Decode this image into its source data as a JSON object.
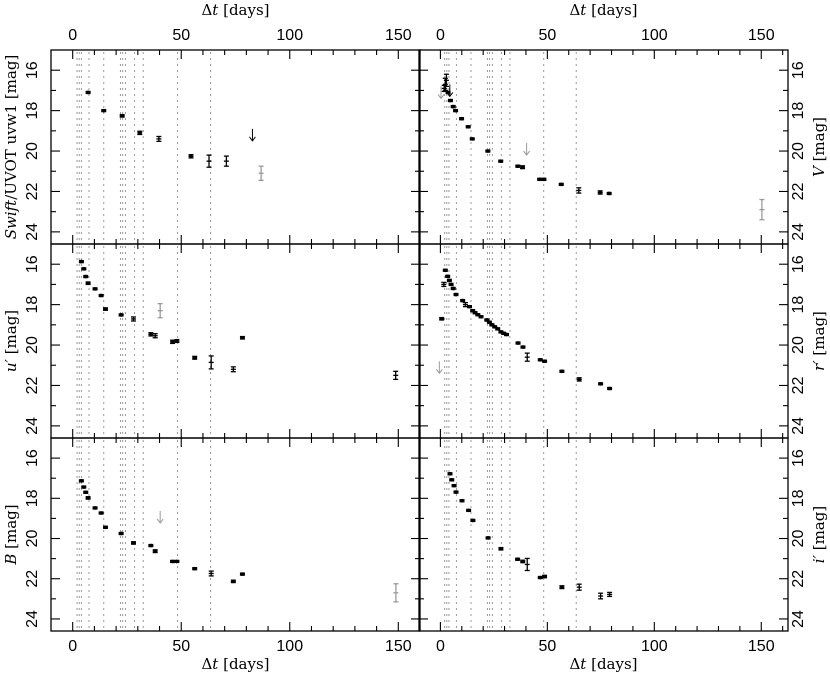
{
  "chart_data": {
    "type": "scatter",
    "x_label_symbol": "Δt",
    "x_label_unit": " [days]",
    "x_ticks": [
      0,
      50,
      100,
      150
    ],
    "y_ticks": [
      16,
      18,
      20,
      22,
      24
    ],
    "y_reversed": true,
    "ylim": [
      15,
      24.6
    ],
    "grid": false,
    "colors": {
      "detection": "#000000",
      "secondary": "#9a9a9a",
      "epoch_lines": "#999999"
    },
    "vertical_lines_days": [
      2,
      3,
      4,
      7.5,
      14.3,
      22,
      23,
      24.3,
      28.5,
      32.5,
      48.3,
      63.5
    ],
    "panels": [
      {
        "id": "uvw1",
        "column": "left",
        "row": 1,
        "xlim": [
          -10,
          160
        ],
        "ylabel_italic": "Swift",
        "ylabel_rest": "/UVOT uvw1 [mag]",
        "points": [
          [
            7.1,
            17.1,
            0.05
          ],
          [
            14.3,
            18.0,
            0.05
          ],
          [
            22.8,
            18.26,
            0.06
          ],
          [
            30.9,
            19.1,
            0.08
          ],
          [
            39.7,
            19.4,
            0.12
          ],
          [
            54.5,
            20.26,
            0.08
          ],
          [
            62.8,
            20.5,
            0.3
          ],
          [
            70.8,
            20.5,
            0.25
          ]
        ],
        "gray_points": [
          [
            86.8,
            21.1,
            0.35
          ]
        ],
        "upper_limits": [
          [
            82.8,
            19.2
          ]
        ],
        "gray_upper_limits": []
      },
      {
        "id": "V",
        "column": "right",
        "row": 1,
        "xlim": [
          -10,
          162.5
        ],
        "ylabel_italic": "V",
        "ylabel_rest": " [mag]",
        "points": [
          [
            1.8,
            16.9,
            0.15
          ],
          [
            2.3,
            16.7,
            0.3
          ],
          [
            2.8,
            16.5,
            0.3
          ],
          [
            3.6,
            17.1,
            0.05
          ],
          [
            4.7,
            17.5,
            0.05
          ],
          [
            6.0,
            17.8,
            0.05
          ],
          [
            7.1,
            18.0,
            0.05
          ],
          [
            9.9,
            18.4,
            0.05
          ],
          [
            13.0,
            18.8,
            0.05
          ],
          [
            14.9,
            19.4,
            0.05
          ],
          [
            22.2,
            20.0,
            0.05
          ],
          [
            28.2,
            20.5,
            0.05
          ],
          [
            36.2,
            20.75,
            0.05
          ],
          [
            38.4,
            20.8,
            0.07
          ],
          [
            46.4,
            21.4,
            0.05
          ],
          [
            48.4,
            21.4,
            0.05
          ],
          [
            56.5,
            21.65,
            0.05
          ],
          [
            64.7,
            21.95,
            0.13
          ],
          [
            74.7,
            22.05,
            0.08
          ],
          [
            78.9,
            22.1,
            0.05
          ]
        ],
        "gray_points": [
          [
            150.3,
            22.9,
            0.5
          ]
        ],
        "upper_limits": [
          [
            4.4,
            17.0
          ]
        ],
        "gray_upper_limits": [
          [
            0.3,
            17.1
          ],
          [
            40.3,
            19.9
          ]
        ]
      },
      {
        "id": "u",
        "column": "left",
        "row": 2,
        "xlim": [
          -10,
          160
        ],
        "ylabel_italic": "u′",
        "ylabel_rest": " [mag]",
        "points": [
          [
            4.0,
            15.87,
            0.05
          ],
          [
            5.1,
            16.23,
            0.05
          ],
          [
            6.0,
            16.61,
            0.05
          ],
          [
            7.1,
            16.94,
            0.06
          ],
          [
            10.3,
            17.22,
            0.05
          ],
          [
            13.1,
            17.55,
            0.05
          ],
          [
            15.1,
            18.22,
            0.06
          ],
          [
            22.3,
            18.51,
            0.05
          ],
          [
            28.0,
            18.71,
            0.1
          ],
          [
            36.0,
            19.47,
            0.08
          ],
          [
            38.0,
            19.54,
            0.1
          ],
          [
            46.0,
            19.84,
            0.08
          ],
          [
            48.0,
            19.8,
            0.07
          ],
          [
            56.2,
            20.63,
            0.07
          ],
          [
            63.8,
            20.86,
            0.32
          ],
          [
            74.0,
            21.2,
            0.12
          ],
          [
            78.2,
            19.64,
            0.06
          ],
          [
            148.8,
            21.5,
            0.2
          ]
        ],
        "gray_points": [
          [
            40.3,
            18.3,
            0.35
          ]
        ],
        "upper_limits": [],
        "gray_upper_limits": []
      },
      {
        "id": "r",
        "column": "right",
        "row": 2,
        "xlim": [
          -10,
          162.5
        ],
        "ylabel_italic": "r′",
        "ylabel_rest": " [mag]",
        "points": [
          [
            0.6,
            18.7,
            0.06
          ],
          [
            1.6,
            17.0,
            0.1
          ],
          [
            2.3,
            16.3,
            0.05
          ],
          [
            3.4,
            16.6,
            0.05
          ],
          [
            4.2,
            16.8,
            0.05
          ],
          [
            5.0,
            17.0,
            0.05
          ],
          [
            6.0,
            17.2,
            0.05
          ],
          [
            7.3,
            17.5,
            0.05
          ],
          [
            10.4,
            17.8,
            0.05
          ],
          [
            11.7,
            18.0,
            0.1
          ],
          [
            13.6,
            18.1,
            0.05
          ],
          [
            15.1,
            18.3,
            0.05
          ],
          [
            16.2,
            18.4,
            0.05
          ],
          [
            17.5,
            18.5,
            0.05
          ],
          [
            19.0,
            18.6,
            0.05
          ],
          [
            21.7,
            18.76,
            0.05
          ],
          [
            22.9,
            18.87,
            0.05
          ],
          [
            24.1,
            19.0,
            0.05
          ],
          [
            25.4,
            19.1,
            0.05
          ],
          [
            26.8,
            19.2,
            0.05
          ],
          [
            28.3,
            19.35,
            0.05
          ],
          [
            29.6,
            19.42,
            0.05
          ],
          [
            30.9,
            19.48,
            0.05
          ],
          [
            36.3,
            19.9,
            0.05
          ],
          [
            38.6,
            20.1,
            0.05
          ],
          [
            40.6,
            20.6,
            0.2
          ],
          [
            46.7,
            20.73,
            0.05
          ],
          [
            48.7,
            20.8,
            0.05
          ],
          [
            56.8,
            21.3,
            0.05
          ],
          [
            64.9,
            21.7,
            0.08
          ],
          [
            74.9,
            21.92,
            0.05
          ],
          [
            79.1,
            22.15,
            0.05
          ]
        ],
        "gray_points": [],
        "upper_limits": [],
        "gray_upper_limits": [
          [
            -0.5,
            21.1
          ]
        ]
      },
      {
        "id": "B",
        "column": "left",
        "row": 3,
        "xlim": [
          -10,
          160
        ],
        "ylabel_italic": "B",
        "ylabel_rest": " [mag]",
        "points": [
          [
            4.0,
            17.13,
            0.05
          ],
          [
            5.1,
            17.44,
            0.05
          ],
          [
            6.0,
            17.7,
            0.05
          ],
          [
            7.1,
            17.98,
            0.06
          ],
          [
            10.3,
            18.48,
            0.05
          ],
          [
            13.1,
            18.73,
            0.05
          ],
          [
            15.1,
            19.44,
            0.05
          ],
          [
            22.3,
            19.75,
            0.05
          ],
          [
            28.0,
            20.22,
            0.06
          ],
          [
            36.0,
            20.35,
            0.05
          ],
          [
            38.0,
            20.63,
            0.07
          ],
          [
            46.0,
            21.14,
            0.05
          ],
          [
            48.0,
            21.14,
            0.05
          ],
          [
            56.2,
            21.5,
            0.05
          ],
          [
            63.8,
            21.74,
            0.12
          ],
          [
            74.0,
            22.13,
            0.06
          ],
          [
            78.2,
            21.77,
            0.05
          ]
        ],
        "gray_points": [
          [
            148.9,
            22.7,
            0.45
          ]
        ],
        "upper_limits": [],
        "gray_upper_limits": [
          [
            40.3,
            18.93
          ]
        ]
      },
      {
        "id": "i",
        "column": "right",
        "row": 3,
        "xlim": [
          -10,
          162.5
        ],
        "ylabel_italic": "i′",
        "ylabel_rest": " [mag]",
        "points": [
          [
            4.5,
            16.78,
            0.05
          ],
          [
            5.3,
            17.08,
            0.05
          ],
          [
            6.4,
            17.37,
            0.05
          ],
          [
            7.3,
            17.69,
            0.05
          ],
          [
            10.1,
            18.12,
            0.05
          ],
          [
            13.2,
            18.6,
            0.05
          ],
          [
            15.2,
            19.1,
            0.05
          ],
          [
            22.3,
            19.97,
            0.05
          ],
          [
            28.3,
            20.51,
            0.06
          ],
          [
            36.1,
            21.03,
            0.05
          ],
          [
            38.5,
            21.14,
            0.06
          ],
          [
            40.6,
            21.29,
            0.3
          ],
          [
            46.7,
            21.94,
            0.05
          ],
          [
            48.7,
            21.89,
            0.06
          ],
          [
            56.8,
            22.42,
            0.07
          ],
          [
            64.9,
            22.42,
            0.15
          ],
          [
            74.9,
            22.86,
            0.14
          ],
          [
            79.1,
            22.78,
            0.1
          ]
        ],
        "gray_points": [],
        "upper_limits": [],
        "gray_upper_limits": []
      }
    ]
  }
}
